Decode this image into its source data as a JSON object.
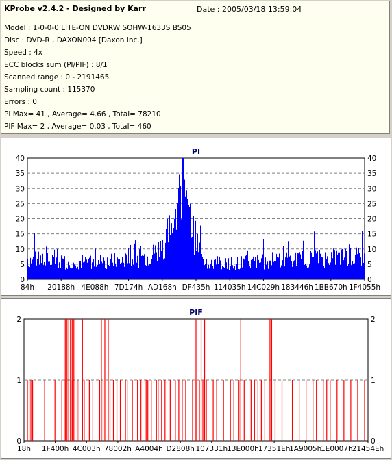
{
  "info": {
    "title": "KProbe v2.4.2 - Designed by Karr",
    "date": "Date : 2005/03/18 13:59:04",
    "lines": [
      "Model : 1-0-0-0 LITE-ON DVDRW SOHW-1633S BS05",
      "Disc : DVD-R , DAXON004 [Daxon Inc.]",
      "Speed : 4x",
      "ECC blocks sum (PI/PIF) : 8/1",
      "Scanned range : 0 - 2191465",
      "Sampling count : 115370",
      "Errors : 0",
      "PI Max= 41 , Average= 4.66 , Total= 78210",
      "PIF Max= 2 , Average= 0.03 , Total= 460"
    ]
  },
  "chart_data": [
    {
      "type": "bar",
      "title": "PI",
      "color": "#0000ff",
      "ylim": [
        0,
        40
      ],
      "yticks": [
        0,
        5,
        10,
        15,
        20,
        25,
        30,
        35,
        40
      ],
      "xlim": [
        0,
        2191465
      ],
      "xtick_labels": [
        "84h",
        "20188h",
        "4E088h",
        "7D174h",
        "AD168h",
        "DF435h",
        "114035h",
        "14C029h",
        "183446h",
        "1BB670h",
        "1F4055h"
      ],
      "profile": [
        [
          0,
          8
        ],
        [
          0.1,
          7
        ],
        [
          0.2,
          7
        ],
        [
          0.3,
          7.5
        ],
        [
          0.36,
          9
        ],
        [
          0.4,
          13
        ],
        [
          0.43,
          22
        ],
        [
          0.45,
          29
        ],
        [
          0.46,
          30
        ],
        [
          0.47,
          27
        ],
        [
          0.49,
          19
        ],
        [
          0.51,
          12
        ],
        [
          0.53,
          7
        ],
        [
          0.6,
          6.5
        ],
        [
          0.7,
          7
        ],
        [
          0.8,
          8
        ],
        [
          0.9,
          8.5
        ],
        [
          1.0,
          9
        ]
      ],
      "peak": 41
    },
    {
      "type": "bar",
      "title": "PIF",
      "color": "#ff0000",
      "ylim": [
        0,
        2
      ],
      "yticks": [
        0,
        1,
        2
      ],
      "xlim": [
        0,
        2191465
      ],
      "xtick_labels": [
        "18h",
        "1F400h",
        "4C003h",
        "78002h",
        "A4004h",
        "D2808h",
        "107331h",
        "13E000h",
        "17351Eh",
        "1A9005h",
        "1E0007h",
        "21454Eh"
      ],
      "ones": [
        0.01,
        0.015,
        0.02,
        0.025,
        0.06,
        0.09,
        0.11,
        0.12,
        0.13,
        0.14,
        0.155,
        0.16,
        0.17,
        0.175,
        0.19,
        0.2,
        0.22,
        0.23,
        0.25,
        0.26,
        0.27,
        0.28,
        0.295,
        0.3,
        0.315,
        0.33,
        0.34,
        0.355,
        0.36,
        0.37,
        0.385,
        0.39,
        0.4,
        0.41,
        0.425,
        0.44,
        0.45,
        0.46,
        0.47,
        0.49,
        0.5,
        0.51,
        0.52,
        0.53,
        0.55,
        0.56,
        0.58,
        0.6,
        0.61,
        0.625,
        0.64,
        0.66,
        0.67,
        0.68,
        0.69,
        0.7,
        0.73,
        0.75,
        0.78,
        0.8,
        0.82,
        0.84,
        0.85,
        0.87,
        0.88,
        0.89,
        0.91,
        0.93,
        0.95,
        0.97,
        0.99
      ],
      "twos": [
        0.12,
        0.125,
        0.13,
        0.135,
        0.14,
        0.145,
        0.17,
        0.225,
        0.235,
        0.245,
        0.5,
        0.515,
        0.525,
        0.63,
        0.715,
        0.72
      ]
    }
  ]
}
